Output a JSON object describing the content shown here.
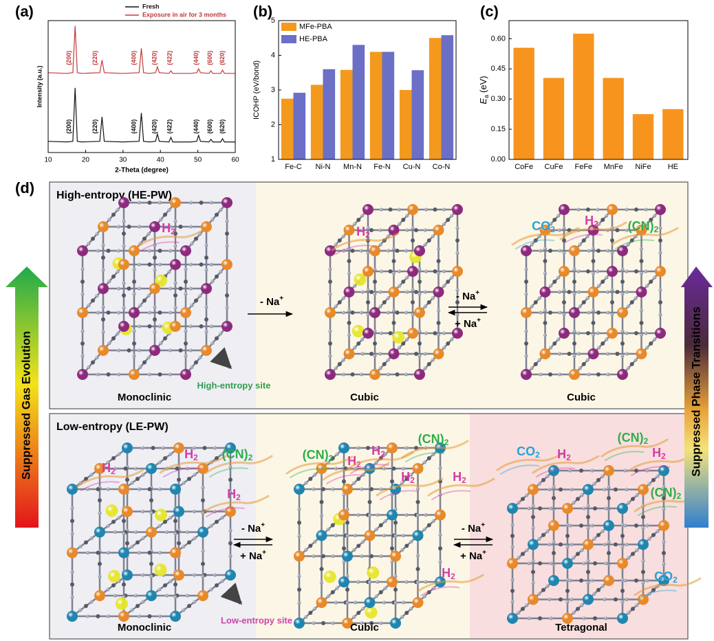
{
  "chart_data": [
    {
      "type": "line",
      "panel_label": "(a)",
      "x_label": "2-Theta (degree)",
      "y_label": "Intensity (a.u.)",
      "xlim": [
        10,
        60
      ],
      "xticks": [
        10,
        20,
        30,
        40,
        50,
        60
      ],
      "ylim": [
        0,
        10
      ],
      "legend": "upper right",
      "x": [
        10,
        15,
        16.6,
        17.2,
        17.8,
        19,
        23.8,
        24.4,
        25,
        30,
        34.3,
        34.9,
        35.5,
        37,
        38.7,
        39.2,
        39.7,
        42.3,
        42.8,
        43.3,
        48,
        49.7,
        50.2,
        50.7,
        53,
        53.5,
        54,
        56.1,
        56.6,
        57.1,
        60
      ],
      "series": [
        {
          "name": "Fresh",
          "color": "#111111",
          "values": [
            0.85,
            0.8,
            0.85,
            4.9,
            0.85,
            0.8,
            0.85,
            2.7,
            0.85,
            0.8,
            0.85,
            3.0,
            0.85,
            0.8,
            0.85,
            1.4,
            0.85,
            0.8,
            1.15,
            0.8,
            0.8,
            0.85,
            1.3,
            0.85,
            0.8,
            1.0,
            0.8,
            0.8,
            1.05,
            0.8,
            0.8
          ],
          "peak_labels": [
            {
              "x": 15.6,
              "text": "(200)"
            },
            {
              "x": 22.6,
              "text": "(220)"
            },
            {
              "x": 33.0,
              "text": "(400)"
            },
            {
              "x": 38.5,
              "text": "(420)"
            },
            {
              "x": 42.6,
              "text": "(422)"
            },
            {
              "x": 49.6,
              "text": "(440)"
            },
            {
              "x": 53.3,
              "text": "(600)"
            },
            {
              "x": 56.6,
              "text": "(620)"
            }
          ]
        },
        {
          "name": "Exposure in air for 3 months",
          "color": "#c0393b",
          "values": [
            6.05,
            6.0,
            6.05,
            9.6,
            6.05,
            6.0,
            6.05,
            7.0,
            6.05,
            6.0,
            6.05,
            7.9,
            6.05,
            6.0,
            6.05,
            6.5,
            6.05,
            6.0,
            6.2,
            6.0,
            6.0,
            6.05,
            6.35,
            6.05,
            6.0,
            6.2,
            6.0,
            6.0,
            6.25,
            6.0,
            6.0
          ],
          "peak_labels": [
            {
              "x": 15.6,
              "text": "(200)"
            },
            {
              "x": 22.6,
              "text": "(220)"
            },
            {
              "x": 33.0,
              "text": "(400)"
            },
            {
              "x": 38.5,
              "text": "(420)"
            },
            {
              "x": 42.6,
              "text": "(422)"
            },
            {
              "x": 49.6,
              "text": "(440)"
            },
            {
              "x": 53.3,
              "text": "(600)"
            },
            {
              "x": 56.6,
              "text": "(620)"
            }
          ]
        }
      ]
    },
    {
      "type": "bar",
      "panel_label": "(b)",
      "y_label": "ICOHP (eV/bond)",
      "legend": "upper left",
      "categories": [
        "Fe-C",
        "Ni-N",
        "Mn-N",
        "Fe-N",
        "Cu-N",
        "Co-N"
      ],
      "series": [
        {
          "name": "MFe-PBA",
          "color": "#f39a1e",
          "values": [
            2.75,
            3.15,
            3.58,
            4.1,
            3.0,
            4.5
          ]
        },
        {
          "name": "HE-PBA",
          "color": "#6b6fc6",
          "values": [
            2.92,
            3.6,
            4.3,
            4.1,
            3.57,
            4.58
          ]
        }
      ],
      "ylim": [
        1,
        5
      ],
      "yticks": [
        1,
        2,
        3,
        4,
        5
      ]
    },
    {
      "type": "bar",
      "panel_label": "(c)",
      "y_label": {
        "symbol": "E",
        "sub": "a",
        "unit": "(eV)"
      },
      "categories": [
        "CoFe",
        "CuFe",
        "FeFe",
        "MnFe",
        "NiFe",
        "HE"
      ],
      "values": [
        0.555,
        0.405,
        0.625,
        0.405,
        0.225,
        0.25
      ],
      "color": "#f7941d",
      "ylim": [
        0,
        0.69
      ],
      "yticks": [
        {
          "value": 0,
          "label": "0.00"
        },
        0.15,
        {
          "value": 0.3,
          "label": "0.30"
        },
        0.45,
        {
          "value": 0.6,
          "label": "0.60"
        }
      ]
    }
  ],
  "diagram": {
    "panel_label": "(d)",
    "left_arrow_label": "Suppressed Gas Evolution",
    "right_arrow_label": "Suppressed Phase Transitions",
    "rows": [
      {
        "title": "High-entropy (HE-PW)",
        "site_label": "High-entropy site",
        "site_color": "#2e9e4f",
        "metal_color": "#8e2a7e",
        "phases": [
          "Monoclinic",
          "Cubic",
          "Cubic"
        ],
        "transitions": [
          [
            {
              "text": "- Na",
              "sup": "+"
            }
          ],
          [
            {
              "text": "- Na",
              "sup": "+"
            },
            {
              "text": "+ Na",
              "sup": "+"
            }
          ]
        ],
        "gases": [
          {
            "base": "H",
            "sub": "2",
            "color": "#d63aa8"
          },
          {
            "base": "H",
            "sub": "2",
            "color": "#d63aa8"
          },
          {
            "base": "CO",
            "sub": "2",
            "color": "#2aa1d8"
          },
          {
            "base": "H",
            "sub": "2",
            "color": "#d63aa8"
          },
          {
            "base": "(CN)",
            "sub": "2",
            "color": "#2fae4a"
          }
        ]
      },
      {
        "title": "Low-entropy (LE-PW)",
        "site_label": "Low-entropy site",
        "site_color": "#cc44aa",
        "metal_color": "#1f86b0",
        "phases": [
          "Monoclinic",
          "Cubic",
          "Tetragonal"
        ],
        "transitions": [
          [
            {
              "text": "- Na",
              "sup": "+"
            },
            {
              "text": "+ Na",
              "sup": "+"
            }
          ],
          [
            {
              "text": "- Na",
              "sup": "+"
            },
            {
              "text": "+ Na",
              "sup": "+"
            }
          ]
        ],
        "gases": [
          {
            "base": "H",
            "sub": "2",
            "color": "#d63aa8"
          },
          {
            "base": "H",
            "sub": "2",
            "color": "#d63aa8"
          },
          {
            "base": "(CN)",
            "sub": "2",
            "color": "#2fae4a"
          },
          {
            "base": "H",
            "sub": "2",
            "color": "#d63aa8"
          },
          {
            "base": "(CN)",
            "sub": "2",
            "color": "#2fae4a"
          },
          {
            "base": "H",
            "sub": "2",
            "color": "#d63aa8"
          },
          {
            "base": "H",
            "sub": "2",
            "color": "#d63aa8"
          },
          {
            "base": "(CN)",
            "sub": "2",
            "color": "#2fae4a"
          },
          {
            "base": "H",
            "sub": "2",
            "color": "#d63aa8"
          },
          {
            "base": "H",
            "sub": "2",
            "color": "#d63aa8"
          },
          {
            "base": "H",
            "sub": "2",
            "color": "#d63aa8"
          },
          {
            "base": "CO",
            "sub": "2",
            "color": "#2aa1d8"
          },
          {
            "base": "H",
            "sub": "2",
            "color": "#d63aa8"
          },
          {
            "base": "(CN)",
            "sub": "2",
            "color": "#2fae4a"
          },
          {
            "base": "H",
            "sub": "2",
            "color": "#d63aa8"
          },
          {
            "base": "(CN)",
            "sub": "2",
            "color": "#2fae4a"
          },
          {
            "base": "CO",
            "sub": "2",
            "color": "#2aa1d8"
          }
        ]
      }
    ]
  }
}
